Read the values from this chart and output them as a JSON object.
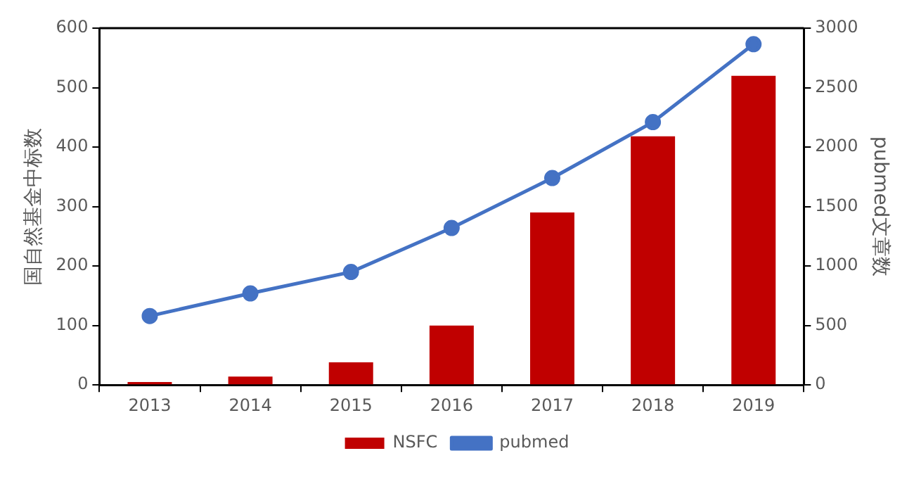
{
  "chart_data": {
    "type": "bar",
    "categories": [
      "2013",
      "2014",
      "2015",
      "2016",
      "2017",
      "2018",
      "2019"
    ],
    "series": [
      {
        "name": "NSFC",
        "color": "#c00000",
        "values": [
          5,
          14,
          38,
          100,
          290,
          418,
          520
        ]
      },
      {
        "name": "pubmed",
        "type": "line",
        "axis": "y2",
        "color": "#4472c4",
        "marker": "circle",
        "values": [
          580,
          770,
          950,
          1320,
          1740,
          2210,
          2865
        ]
      }
    ],
    "ylabel": "国自然基金中标数",
    "y2label": "pubmed文章数",
    "ylim": [
      0,
      600
    ],
    "yticks": [
      0,
      100,
      200,
      300,
      400,
      500,
      600
    ],
    "y2lim": [
      0,
      3000
    ],
    "y2ticks": [
      0,
      500,
      1000,
      1500,
      2000,
      2500,
      3000
    ],
    "grid": false,
    "legend": "bottom"
  }
}
